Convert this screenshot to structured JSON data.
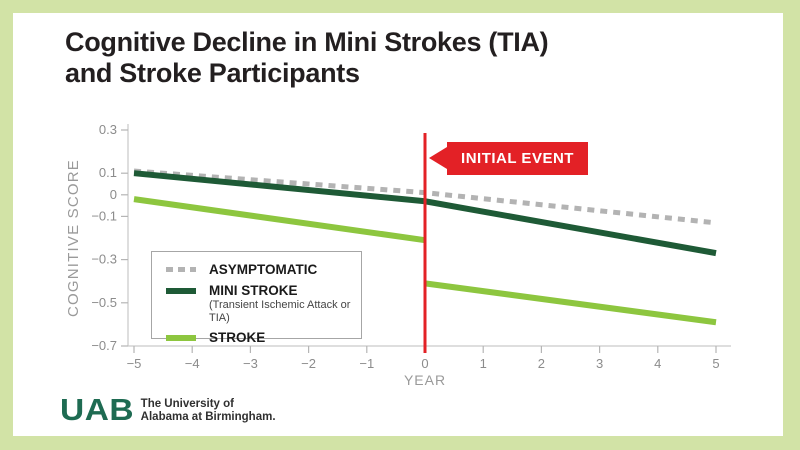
{
  "page": {
    "title_line1": "Cognitive Decline in Mini Strokes (TIA)",
    "title_line2": "and Stroke Participants"
  },
  "colors": {
    "background_border": "#d2e3a6",
    "card": "#ffffff",
    "title_text": "#231f20",
    "axis_line": "#c9c9c9",
    "axis_tick": "#b5b5b5",
    "axis_text": "#8c8c8c",
    "asymptomatic_gray": "#b3b3b3",
    "mini_stroke_green": "#1e5a36",
    "stroke_green": "#8dc63f",
    "event_red": "#e32126",
    "uab_green": "#1e6b52"
  },
  "chart_data": {
    "type": "line",
    "title": "Cognitive Decline in Mini Strokes (TIA) and Stroke Participants",
    "xlabel": "YEAR",
    "ylabel": "COGNITIVE SCORE",
    "xlim": [
      -5,
      5
    ],
    "ylim": [
      -0.7,
      0.3
    ],
    "xticks": [
      -5,
      -4,
      -3,
      -2,
      -1,
      0,
      1,
      2,
      3,
      4,
      5
    ],
    "yticks": [
      0.3,
      0.1,
      0,
      -0.1,
      -0.3,
      -0.5,
      -0.7
    ],
    "grid": false,
    "legend_position": "lower-left",
    "event_line_x": 0,
    "event_label": "INITIAL EVENT",
    "series": [
      {
        "name": "ASYMPTOMATIC",
        "style": "dashed",
        "color": "#b3b3b3",
        "segments": [
          [
            [
              -5,
              0.11
            ],
            [
              0,
              0.01
            ],
            [
              5,
              -0.13
            ]
          ]
        ]
      },
      {
        "name": "MINI STROKE",
        "subtitle": "(Transient Ischemic Attack or TIA)",
        "style": "solid",
        "color": "#1e5a36",
        "segments": [
          [
            [
              -5,
              0.1
            ],
            [
              0,
              -0.03
            ],
            [
              5,
              -0.27
            ]
          ]
        ]
      },
      {
        "name": "STROKE",
        "style": "solid",
        "color": "#8dc63f",
        "segments": [
          [
            [
              -5,
              -0.02
            ],
            [
              0,
              -0.21
            ]
          ],
          [
            [
              0,
              -0.41
            ],
            [
              5,
              -0.59
            ]
          ]
        ],
        "note": "acute drop at initial event"
      }
    ]
  },
  "footer": {
    "logo_text": "UAB",
    "org_line1": "The University of",
    "org_line2": "Alabama at Birmingham."
  }
}
